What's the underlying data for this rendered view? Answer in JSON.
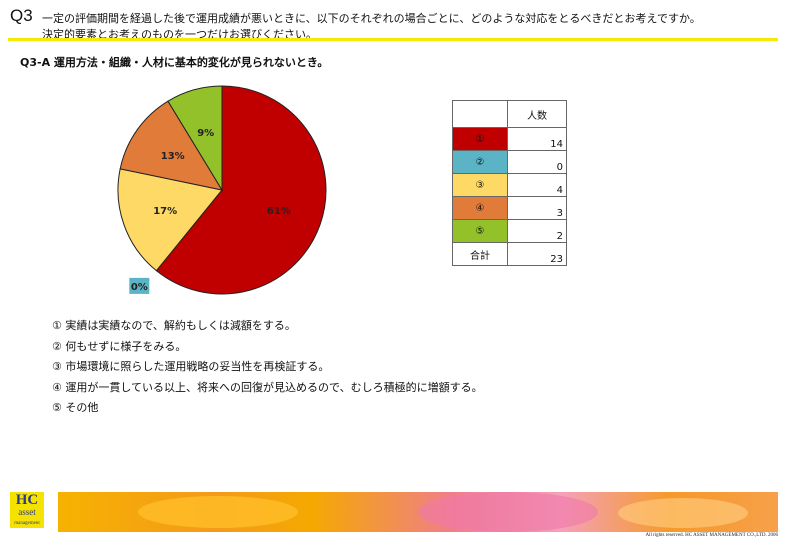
{
  "header": {
    "question_number": "Q3",
    "question_line1": "一定の評価期間を経過した後で運用成績が悪いときに、以下のそれぞれの場合ごとに、どのような対応をとるべきだとお考えですか。",
    "question_line2": "決定的要素とお考えのものを一つだけお選びください。"
  },
  "chart_data": {
    "type": "pie",
    "title": "Q3-A 運用方法・組織・人材に基本的変化が見られないとき。",
    "slices": [
      {
        "key": "①",
        "label": "実績は実績なので、解約もしくは減額をする。",
        "count": 14,
        "percent_label": "61%",
        "color": "#c00000"
      },
      {
        "key": "②",
        "label": "何もせずに様子をみる。",
        "count": 0,
        "percent_label": "0%",
        "color": "#5ab4c5"
      },
      {
        "key": "③",
        "label": "市場環境に照らした運用戦略の妥当性を再検証する。",
        "count": 4,
        "percent_label": "17%",
        "color": "#ffd966"
      },
      {
        "key": "④",
        "label": "運用が一貫している以上、将来への回復が見込めるので、むしろ積極的に増額する。",
        "count": 3,
        "percent_label": "13%",
        "color": "#e07b39"
      },
      {
        "key": "⑤",
        "label": "その他",
        "count": 2,
        "percent_label": "9%",
        "color": "#92c12a"
      }
    ],
    "table_header": "人数",
    "total_label": "合計",
    "total": 23
  },
  "legend_lines": [
    "① 実績は実績なので、解約もしくは減額をする。",
    "② 何もせずに様子をみる。",
    "③ 市場環境に照らした運用戦略の妥当性を再検証する。",
    "④ 運用が一貫している以上、将来への回復が見込めるので、むしろ積極的に増額する。",
    "⑤ その他"
  ],
  "logo": {
    "line1": "HC",
    "line2": "asset",
    "line3": "management"
  },
  "copyright": "All rights reserved. HC ASSET MANAGEMENT CO.,LTD. 2006"
}
